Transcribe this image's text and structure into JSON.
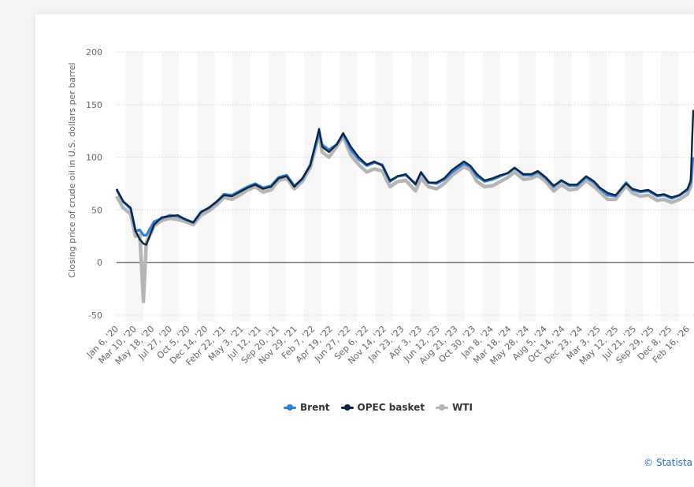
{
  "chart_data": {
    "type": "line",
    "ylabel": "Closing price of crude oil in U.S. dollars per barrel",
    "ylim": [
      -50,
      200
    ],
    "yticks": [
      200,
      150,
      100,
      50,
      0,
      -50
    ],
    "xtick_labels": [
      "Jan 6, '20",
      "Mar 10, '20",
      "May 18, '20",
      "Jul 27, '20",
      "Oct 5, '20",
      "Dec 14, '20",
      "Febr 22, '21",
      "May 3, '21",
      "Jul 12, '21",
      "Sep 20, '21",
      "Nov 29, '21",
      "Feb 7, '22",
      "Apr 19, '22",
      "Jun 27, '22",
      "Sep 6, '22",
      "Nov 14, '22",
      "Jan 23, '23",
      "Apr 3, '23",
      "Jun 12, '23",
      "Aug 21, '23",
      "Oct 30, '23",
      "Jan 8, '24",
      "Mar 18, '24",
      "May 28, '24",
      "Aug 5, '24",
      "Oct 14, '24",
      "Dec 23, '24",
      "Mar 3, '25",
      "May 12, '25",
      "Jul 21, '25",
      "Sep 29, '25",
      "Dec 8, '25",
      "Feb 16, '26"
    ],
    "xlim": [
      "2020-01-06",
      "2026-02-16"
    ],
    "x": [
      "2020-01-06",
      "2020-02-01",
      "2020-03-01",
      "2020-03-20",
      "2020-04-06",
      "2020-04-20",
      "2020-05-01",
      "2020-06-01",
      "2020-07-01",
      "2020-08-01",
      "2020-09-01",
      "2020-10-01",
      "2020-11-01",
      "2020-12-01",
      "2021-01-01",
      "2021-02-01",
      "2021-03-01",
      "2021-04-01",
      "2021-05-01",
      "2021-06-01",
      "2021-07-01",
      "2021-08-01",
      "2021-09-01",
      "2021-10-01",
      "2021-11-01",
      "2021-12-01",
      "2022-01-01",
      "2022-02-01",
      "2022-03-08",
      "2022-03-20",
      "2022-04-15",
      "2022-05-15",
      "2022-06-10",
      "2022-07-10",
      "2022-08-10",
      "2022-09-10",
      "2022-10-10",
      "2022-11-10",
      "2022-12-10",
      "2023-01-10",
      "2023-02-10",
      "2023-03-20",
      "2023-04-10",
      "2023-05-10",
      "2023-06-10",
      "2023-07-10",
      "2023-08-10",
      "2023-09-25",
      "2023-10-20",
      "2023-11-15",
      "2023-12-15",
      "2024-01-15",
      "2024-02-15",
      "2024-03-15",
      "2024-04-10",
      "2024-05-15",
      "2024-06-15",
      "2024-07-10",
      "2024-08-10",
      "2024-09-10",
      "2024-10-10",
      "2024-11-10",
      "2024-12-10",
      "2025-01-15",
      "2025-02-15",
      "2025-03-10",
      "2025-04-10",
      "2025-05-10",
      "2025-06-20",
      "2025-07-15",
      "2025-08-15",
      "2025-09-15",
      "2025-10-20",
      "2025-11-15",
      "2025-12-15",
      "2026-01-15",
      "2026-02-15",
      "2026-02-28",
      "2026-03-06",
      "2026-03-10"
    ],
    "series": [
      {
        "name": "WTI",
        "color": "#b5b5b5",
        "values": [
          63,
          52,
          46,
          25,
          26,
          -37,
          19,
          35,
          40,
          42,
          41,
          39,
          36,
          45,
          49,
          55,
          62,
          60,
          64,
          69,
          72,
          67,
          69,
          78,
          80,
          70,
          77,
          90,
          122,
          105,
          100,
          110,
          120,
          102,
          93,
          86,
          89,
          87,
          72,
          77,
          78,
          68,
          80,
          72,
          70,
          75,
          83,
          91,
          88,
          77,
          72,
          73,
          77,
          81,
          86,
          79,
          80,
          83,
          77,
          68,
          74,
          69,
          70,
          78,
          72,
          67,
          60,
          60,
          73,
          66,
          63,
          64,
          59,
          60,
          57,
          60,
          65,
          72,
          92,
          97
        ]
      },
      {
        "name": "Brent",
        "color": "#2f7fe0",
        "values": [
          69,
          58,
          51,
          30,
          31,
          26,
          26,
          39,
          42,
          45,
          44,
          41,
          38,
          48,
          52,
          58,
          65,
          64,
          68,
          72,
          75,
          71,
          73,
          81,
          83,
          73,
          79,
          93,
          124,
          112,
          107,
          112,
          122,
          107,
          98,
          92,
          95,
          93,
          77,
          82,
          83,
          75,
          85,
          76,
          75,
          79,
          86,
          94,
          91,
          82,
          77,
          79,
          82,
          85,
          90,
          83,
          83,
          86,
          80,
          72,
          78,
          73,
          73,
          81,
          76,
          70,
          64,
          63,
          76,
          69,
          67,
          68,
          63,
          64,
          61,
          64,
          69,
          76,
          95,
          100
        ]
      },
      {
        "name": "OPEC basket",
        "color": "#0d2640",
        "values": [
          70,
          58,
          52,
          30,
          22,
          18,
          17,
          36,
          43,
          44,
          45,
          41,
          38,
          48,
          52,
          58,
          64,
          63,
          67,
          71,
          74,
          70,
          72,
          80,
          82,
          72,
          80,
          92,
          127,
          110,
          105,
          112,
          123,
          110,
          100,
          93,
          96,
          92,
          78,
          82,
          84,
          74,
          86,
          76,
          76,
          80,
          88,
          96,
          92,
          84,
          78,
          80,
          83,
          85,
          90,
          84,
          84,
          87,
          81,
          73,
          78,
          74,
          74,
          82,
          77,
          71,
          66,
          64,
          75,
          70,
          68,
          69,
          64,
          65,
          62,
          64,
          70,
          78,
          120,
          145
        ]
      }
    ],
    "legend": {
      "placement": "bottom-center",
      "entries": [
        "Brent",
        "OPEC basket",
        "WTI"
      ]
    },
    "grid": true
  },
  "credit": "© Statista"
}
